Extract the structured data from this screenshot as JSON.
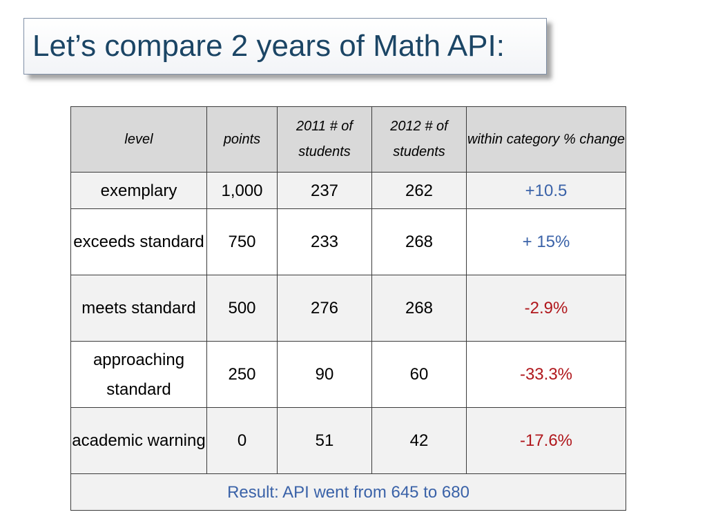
{
  "title": "Let’s compare 2 years of Math API:",
  "table": {
    "headers": {
      "level": "level",
      "points": "points",
      "y2011": "2011 # of students",
      "y2012": "2012 # of students",
      "change": "within category % change"
    },
    "rows": [
      {
        "level": "exemplary",
        "points": "1,000",
        "y2011": "237",
        "y2012": "262",
        "change": "+10.5",
        "trend": "up"
      },
      {
        "level": "exceeds standard",
        "points": "750",
        "y2011": "233",
        "y2012": "268",
        "change": "+ 15%",
        "trend": "up"
      },
      {
        "level": "meets standard",
        "points": "500",
        "y2011": "276",
        "y2012": "268",
        "change": "-2.9%",
        "trend": "down"
      },
      {
        "level": "approaching standard",
        "points": "250",
        "y2011": "90",
        "y2012": "60",
        "change": "-33.3%",
        "trend": "down"
      },
      {
        "level": "academic warning",
        "points": "0",
        "y2011": "51",
        "y2012": "42",
        "change": "-17.6%",
        "trend": "down"
      }
    ],
    "result": "Result:  API went from 645 to 680"
  },
  "colors": {
    "title": "#1b4565",
    "positive": "#3a62a8",
    "negative": "#b0171c",
    "header_bg": "#d9d9d9",
    "row_alt_bg": "#f2f2f2"
  }
}
